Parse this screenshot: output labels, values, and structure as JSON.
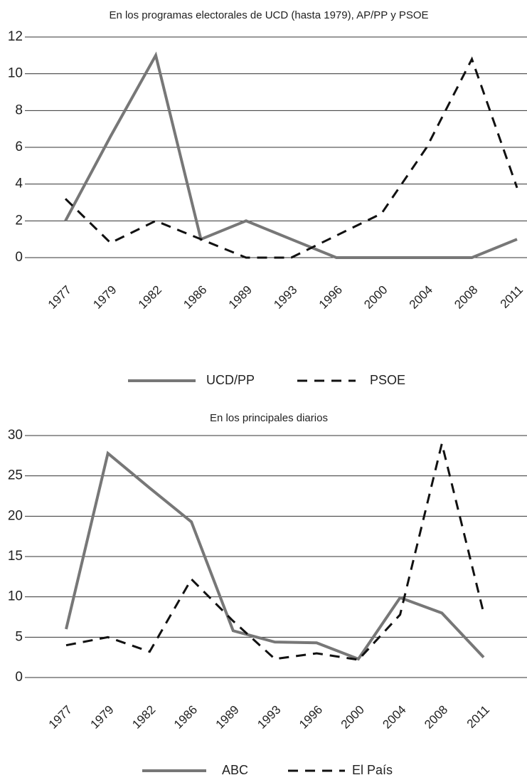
{
  "chart_data": [
    {
      "type": "line",
      "title": "En los programas electorales de UCD (hasta 1979), AP/PP y PSOE",
      "categories": [
        "1977",
        "1979",
        "1982",
        "1986",
        "1989",
        "1993",
        "1996",
        "2000",
        "2004",
        "2008",
        "2011"
      ],
      "series": [
        {
          "name": "UCD/PP",
          "color": "#777777",
          "dash": false,
          "values": [
            2,
            6.6,
            11,
            1,
            2,
            1,
            0,
            0,
            0,
            0,
            1
          ]
        },
        {
          "name": "PSOE",
          "color": "#111111",
          "dash": true,
          "values": [
            3.2,
            0.8,
            2,
            1,
            0,
            0,
            1.2,
            2.4,
            6,
            10.8,
            3.8
          ]
        }
      ],
      "ylim": [
        0,
        12
      ],
      "yticks": [
        0,
        2,
        4,
        6,
        8,
        10,
        12
      ],
      "grid": true,
      "legend": "bottom"
    },
    {
      "type": "line",
      "title": "En los principales diarios",
      "categories": [
        "1977",
        "1979",
        "1982",
        "1986",
        "1989",
        "1993",
        "1996",
        "2000",
        "2004",
        "2008",
        "2011"
      ],
      "series": [
        {
          "name": "ABC",
          "color": "#777777",
          "dash": false,
          "values": [
            6,
            27.8,
            23.5,
            19.3,
            5.8,
            4.4,
            4.3,
            2.3,
            9.9,
            8,
            2.5
          ]
        },
        {
          "name": "El País",
          "color": "#111111",
          "dash": true,
          "values": [
            4,
            5,
            3.2,
            12.2,
            7,
            2.3,
            3,
            2.2,
            7.8,
            29,
            8
          ]
        }
      ],
      "ylim": [
        0,
        30
      ],
      "yticks": [
        0,
        5,
        10,
        15,
        20,
        25,
        30
      ],
      "grid": true,
      "legend": "bottom"
    }
  ]
}
